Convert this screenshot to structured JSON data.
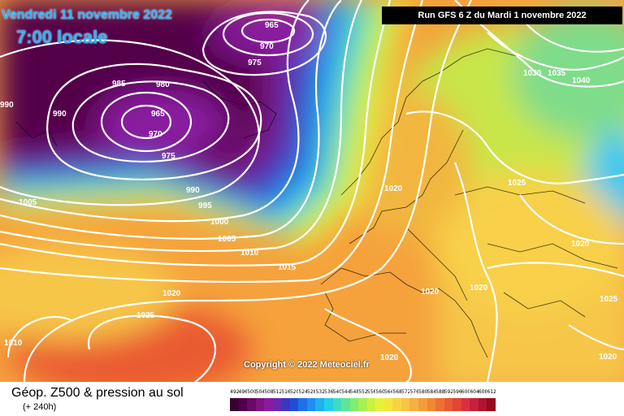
{
  "header": {
    "date": "Vendredi 11 novembre 2022",
    "time": "7:00 locale",
    "run": "Run GFS 6 Z du Mardi 1 novembre 2022"
  },
  "copyright": "Copyright © 2022 Meteociel.fr",
  "footer": {
    "title": "Géop. Z500 & pression au sol",
    "subtitle": "(+ 240h)"
  },
  "isobar_labels": [
    "965",
    "970",
    "975",
    "985",
    "980",
    "990",
    "965",
    "970",
    "975",
    "1005",
    "990",
    "995",
    "1000",
    "1005",
    "1010",
    "1015",
    "1020",
    "1025",
    "1010",
    "1020",
    "1030",
    "1035",
    "1040",
    "1025",
    "1020",
    "1020",
    "1020",
    "1025",
    "1020",
    "1020",
    "990"
  ],
  "scale": {
    "values": [
      "492",
      "496",
      "500",
      "504",
      "508",
      "512",
      "516",
      "520",
      "524",
      "528",
      "532",
      "536",
      "540",
      "544",
      "548",
      "552",
      "556",
      "560",
      "564",
      "568",
      "572",
      "576",
      "580",
      "584",
      "588",
      "592",
      "596",
      "600",
      "604",
      "608",
      "612"
    ],
    "colors": [
      "#3a0033",
      "#52004a",
      "#6a0a66",
      "#7d1480",
      "#8a1ba0",
      "#6a28b0",
      "#3f36c0",
      "#1f4fd8",
      "#1f6fe8",
      "#1e8ef0",
      "#1fb0f0",
      "#25cde8",
      "#3ddcc0",
      "#5ee59a",
      "#80ec72",
      "#a8f050",
      "#caf23c",
      "#e6f23a",
      "#f4e63c",
      "#f8d442",
      "#f8c444",
      "#f6b040",
      "#f49c3a",
      "#f08834",
      "#ec7030",
      "#e85a32",
      "#e24436",
      "#d83040",
      "#c8203c",
      "#b01430",
      "#960a20"
    ]
  }
}
